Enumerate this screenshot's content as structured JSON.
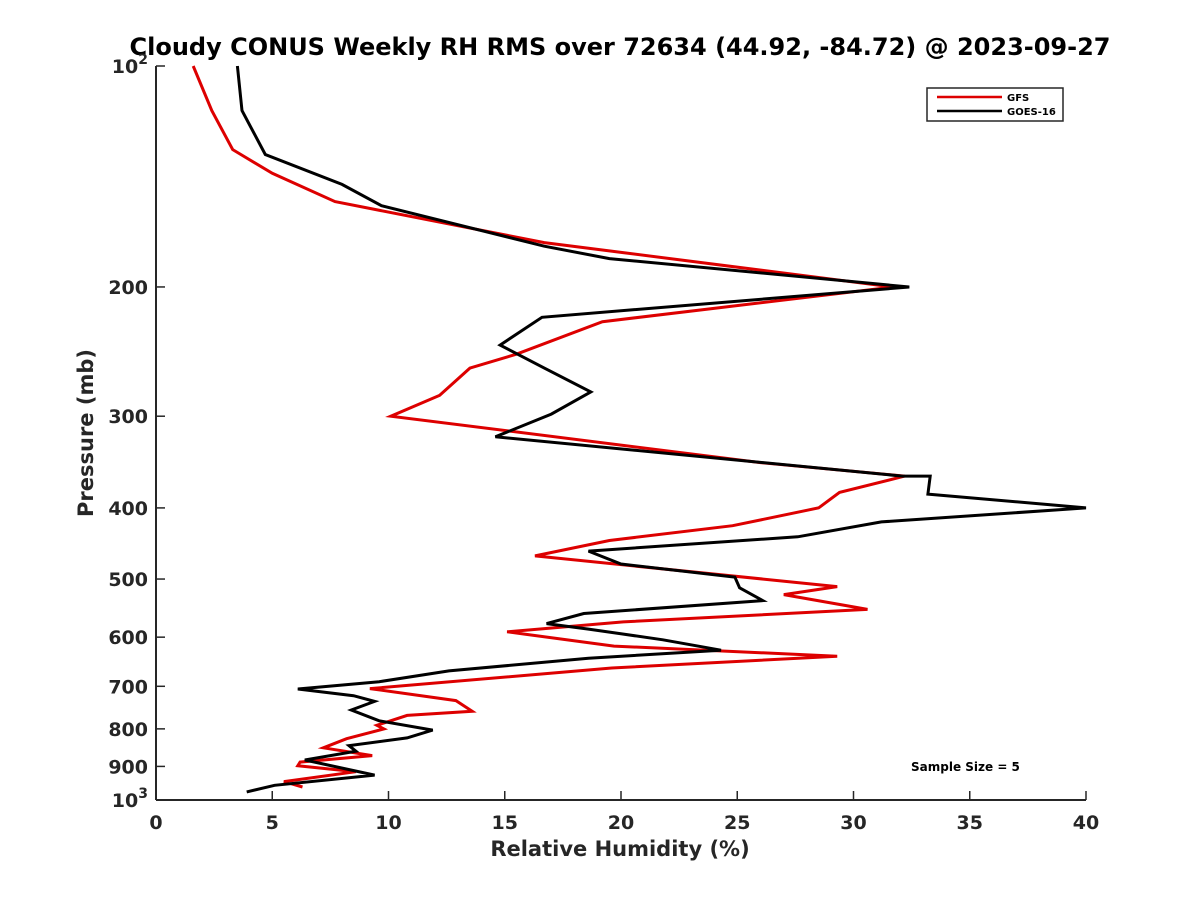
{
  "chart_data": {
    "type": "line",
    "title": "Cloudy CONUS Weekly RH RMS over 72634 (44.92, -84.72) @ 2023-09-27",
    "xlabel": "Relative Humidity (%)",
    "ylabel": "Pressure (mb)",
    "xlim": [
      0,
      40
    ],
    "ylim": [
      100,
      1000
    ],
    "y_scale": "log",
    "y_reversed": true,
    "grid": false,
    "legend_position": "top-right",
    "x_ticks": [
      0,
      5,
      10,
      15,
      20,
      25,
      30,
      35,
      40
    ],
    "y_ticks": [
      {
        "value": 100,
        "base": "10",
        "exp": "2"
      },
      {
        "value": 200,
        "label": "200"
      },
      {
        "value": 300,
        "label": "300"
      },
      {
        "value": 400,
        "label": "400"
      },
      {
        "value": 500,
        "label": "500"
      },
      {
        "value": 600,
        "label": "600"
      },
      {
        "value": 700,
        "label": "700"
      },
      {
        "value": 800,
        "label": "800"
      },
      {
        "value": 900,
        "label": "900"
      },
      {
        "value": 1000,
        "base": "10",
        "exp": "3"
      }
    ],
    "series": [
      {
        "name": "GFS",
        "color": "#dd0000",
        "points": [
          [
            1.6,
            100
          ],
          [
            2.4,
            115
          ],
          [
            3.3,
            130
          ],
          [
            5,
            140
          ],
          [
            7.7,
            153
          ],
          [
            16.7,
            174
          ],
          [
            31.7,
            200
          ],
          [
            19.2,
            223
          ],
          [
            15.5,
            247
          ],
          [
            13.5,
            258
          ],
          [
            12.2,
            281
          ],
          [
            10.1,
            300
          ],
          [
            26,
            347
          ],
          [
            32.2,
            362
          ],
          [
            29.4,
            381
          ],
          [
            28.5,
            400
          ],
          [
            24.8,
            423
          ],
          [
            19.5,
            443
          ],
          [
            16.3,
            465
          ],
          [
            29.3,
            512
          ],
          [
            27,
            525
          ],
          [
            30.6,
            550
          ],
          [
            20.1,
            572
          ],
          [
            15.1,
            590
          ],
          [
            19.7,
            617
          ],
          [
            29.3,
            637
          ],
          [
            19.6,
            661
          ],
          [
            9.2,
            705
          ],
          [
            12.9,
            732
          ],
          [
            13.6,
            757
          ],
          [
            10.8,
            767
          ],
          [
            9.5,
            791
          ],
          [
            9.8,
            800
          ],
          [
            8.2,
            825
          ],
          [
            7.2,
            849
          ],
          [
            9.3,
            870
          ],
          [
            6.2,
            888
          ],
          [
            6.1,
            898
          ],
          [
            8.6,
            915
          ],
          [
            5.5,
            944
          ],
          [
            6.3,
            960
          ]
        ]
      },
      {
        "name": "GOES-16",
        "color": "#000000",
        "points": [
          [
            3.5,
            100
          ],
          [
            3.7,
            115
          ],
          [
            4.7,
            132
          ],
          [
            8,
            145
          ],
          [
            9.7,
            155
          ],
          [
            16.7,
            176
          ],
          [
            19.5,
            183
          ],
          [
            32.4,
            200
          ],
          [
            16.6,
            220
          ],
          [
            14.8,
            240
          ],
          [
            16.7,
            258
          ],
          [
            18.7,
            278
          ],
          [
            17,
            298
          ],
          [
            14.6,
            320
          ],
          [
            32.1,
            362
          ],
          [
            33.3,
            362
          ],
          [
            33.2,
            383
          ],
          [
            40,
            400
          ],
          [
            31.2,
            418
          ],
          [
            27.6,
            438
          ],
          [
            18.6,
            458
          ],
          [
            20,
            477
          ],
          [
            24.9,
            497
          ],
          [
            25.1,
            514
          ],
          [
            26.1,
            535
          ],
          [
            18.4,
            557
          ],
          [
            16.8,
            575
          ],
          [
            18.6,
            585
          ],
          [
            21.8,
            605
          ],
          [
            24.3,
            625
          ],
          [
            18.6,
            641
          ],
          [
            12.6,
            667
          ],
          [
            9.6,
            690
          ],
          [
            6.1,
            706
          ],
          [
            8.5,
            721
          ],
          [
            9.4,
            734
          ],
          [
            8.4,
            754
          ],
          [
            9.6,
            780
          ],
          [
            11.9,
            803
          ],
          [
            10.8,
            823
          ],
          [
            8.3,
            843
          ],
          [
            8.6,
            858
          ],
          [
            6.4,
            882
          ],
          [
            9.4,
            925
          ],
          [
            5.1,
            955
          ],
          [
            3.9,
            975
          ]
        ]
      }
    ],
    "annotation": "Sample Size = 5"
  }
}
